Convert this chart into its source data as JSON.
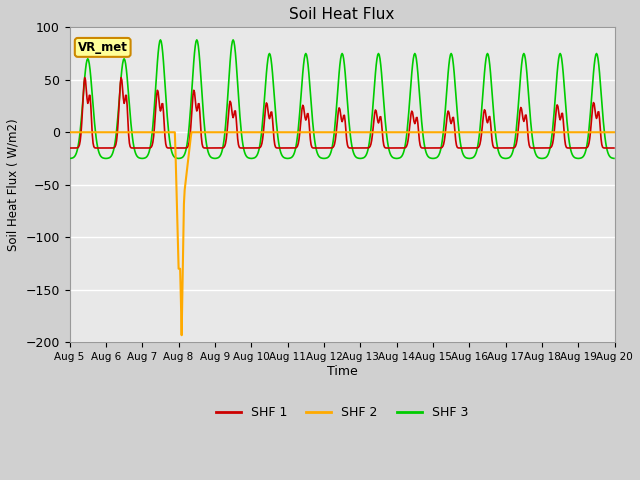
{
  "title": "Soil Heat Flux",
  "ylabel": "Soil Heat Flux ( W/m2)",
  "xlabel": "Time",
  "ylim": [
    -200,
    100
  ],
  "xlim": [
    0,
    15
  ],
  "background_color": "#d0d0d0",
  "plot_bg_color": "#e8e8e8",
  "grid_color": "#ffffff",
  "annotation_text": "VR_met",
  "annotation_box_color": "#ffff99",
  "annotation_box_edge": "#cc8800",
  "x_tick_labels": [
    "Aug 5",
    "Aug 6",
    "Aug 7",
    "Aug 8",
    "Aug 9",
    "Aug 10",
    "Aug 11",
    "Aug 12",
    "Aug 13",
    "Aug 14",
    "Aug 15",
    "Aug 16",
    "Aug 17",
    "Aug 18",
    "Aug 19",
    "Aug 20"
  ],
  "shf1_color": "#cc0000",
  "shf2_color": "#ffaa00",
  "shf3_color": "#00cc00",
  "legend_labels": [
    "SHF 1",
    "SHF 2",
    "SHF 3"
  ],
  "figsize": [
    6.4,
    4.8
  ],
  "dpi": 100
}
